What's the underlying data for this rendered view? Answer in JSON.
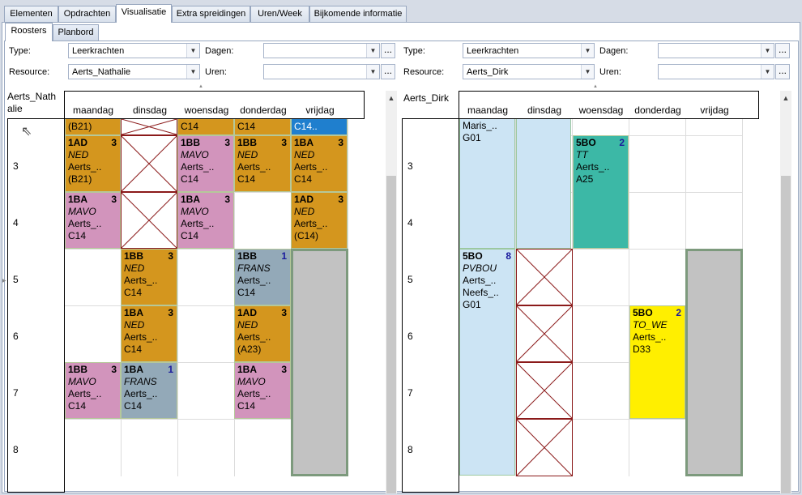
{
  "tabs": [
    "Elementen",
    "Opdrachten",
    "Visualisatie",
    "Extra spreidingen",
    "Uren/Week",
    "Bijkomende informatie"
  ],
  "subtabs": [
    "Roosters",
    "Planbord"
  ],
  "days": [
    "maandag",
    "dinsdag",
    "woensdag",
    "donderdag",
    "vrijdag"
  ],
  "hours": [
    "3",
    "4",
    "5",
    "6",
    "7",
    "8"
  ],
  "labels": {
    "type": "Type:",
    "resource": "Resource:",
    "dagen": "Dagen:",
    "uren": "Uren:",
    "dots": "..."
  },
  "left": {
    "type_value": "Leerkrachten",
    "resource_value": "Aerts_Nathalie",
    "dagen_value": "",
    "uren_value": "",
    "name": "Aerts_Nath alie",
    "top_row": {
      "mon": "(B21)",
      "wed": "C14",
      "thu": "C14",
      "fri": "C14.."
    },
    "blocks": [
      {
        "t": "1AD",
        "n": "3",
        "s": "NED",
        "l1": "Aerts_..",
        "l2": "(B21)"
      },
      {
        "t": "1BB",
        "n": "3",
        "s": "MAVO",
        "l1": "Aerts_..",
        "l2": "C14"
      },
      {
        "t": "1BB",
        "n": "3",
        "s": "NED",
        "l1": "Aerts_..",
        "l2": "C14"
      },
      {
        "t": "1BA",
        "n": "3",
        "s": "NED",
        "l1": "Aerts_..",
        "l2": "C14"
      },
      {
        "t": "1BA",
        "n": "3",
        "s": "MAVO",
        "l1": "Aerts_..",
        "l2": "C14"
      },
      {
        "t": "1BA",
        "n": "3",
        "s": "MAVO",
        "l1": "Aerts_..",
        "l2": "C14"
      },
      {
        "t": "1AD",
        "n": "3",
        "s": "NED",
        "l1": "Aerts_..",
        "l2": "(C14)"
      },
      {
        "t": "1BB",
        "n": "3",
        "s": "NED",
        "l1": "Aerts_..",
        "l2": "C14"
      },
      {
        "t": "1BB",
        "n": "1",
        "s": "FRANS",
        "l1": "Aerts_..",
        "l2": "C14"
      },
      {
        "t": "1BA",
        "n": "3",
        "s": "NED",
        "l1": "Aerts_..",
        "l2": "C14"
      },
      {
        "t": "1AD",
        "n": "3",
        "s": "NED",
        "l1": "Aerts_..",
        "l2": "(A23)"
      },
      {
        "t": "1BB",
        "n": "3",
        "s": "MAVO",
        "l1": "Aerts_..",
        "l2": "C14"
      },
      {
        "t": "1BA",
        "n": "1",
        "s": "FRANS",
        "l1": "Aerts_..",
        "l2": "C14"
      },
      {
        "t": "1BA",
        "n": "3",
        "s": "MAVO",
        "l1": "Aerts_..",
        "l2": "C14"
      }
    ]
  },
  "right": {
    "type_value": "Leerkrachten",
    "resource_value": "Aerts_Dirk",
    "dagen_value": "",
    "uren_value": "",
    "name": "Aerts_Dirk",
    "top_row": {
      "mon1": "Maris_..",
      "mon2": "G01"
    },
    "blocks": [
      {
        "t": "5BO",
        "n": "2",
        "s": "TT",
        "l1": "Aerts_..",
        "l2": "A25"
      },
      {
        "t": "5BO",
        "n": "8",
        "s": "PVBOU",
        "l1": "Aerts_..",
        "l2": "Neefs_..",
        "l3": "G01"
      },
      {
        "t": "5BO",
        "n": "2",
        "s": "TO_WE",
        "l1": "Aerts_..",
        "l2": "D33"
      }
    ]
  },
  "colors": {
    "orange": "#d4961e",
    "pink": "#d294bc",
    "steel": "#93a9b8",
    "blue": "#1f7fce",
    "lightblue": "#cce4f4",
    "teal": "#3cb8a6",
    "yellow": "#ffef00",
    "gray": "#c2c2c2"
  }
}
